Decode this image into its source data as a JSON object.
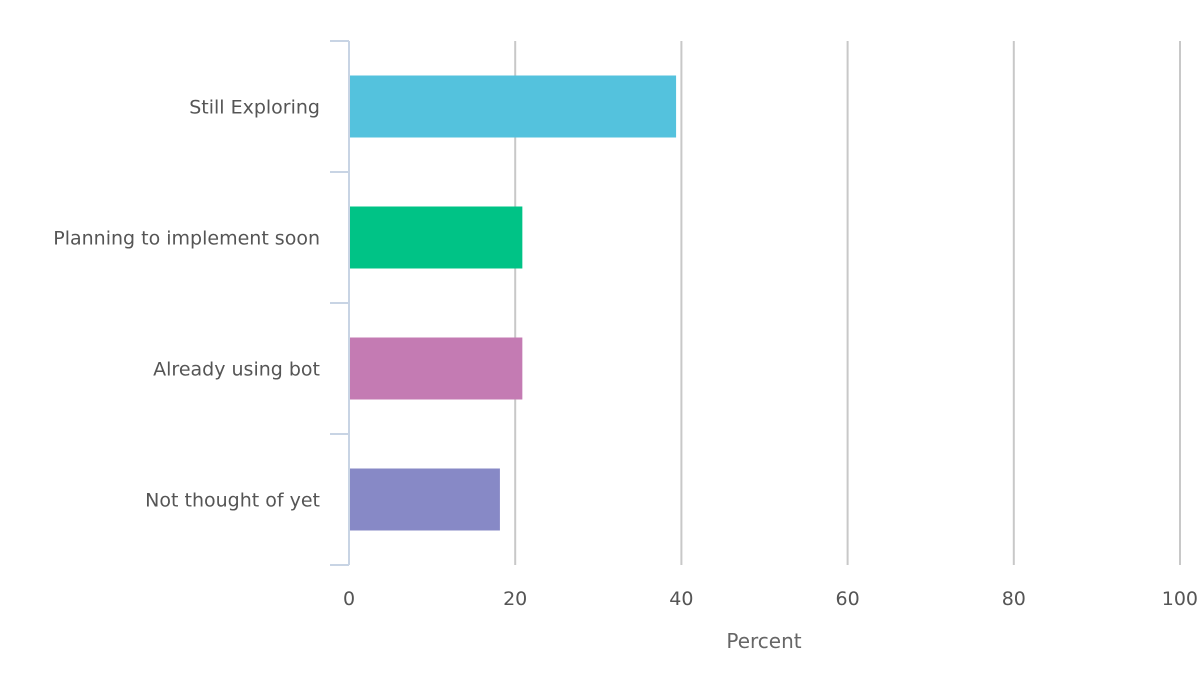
{
  "chart_data": {
    "type": "bar",
    "orientation": "horizontal",
    "categories": [
      "Still Exploring",
      "Planning to implement soon",
      "Already using bot",
      "Not thought of yet"
    ],
    "values": [
      39.3,
      20.8,
      20.8,
      18.1
    ],
    "colors": [
      "#54c2dd",
      "#00c386",
      "#c47bb3",
      "#8789c6"
    ],
    "xlabel": "Percent",
    "xlim": [
      0,
      100
    ],
    "xticks": [
      "0",
      "20",
      "40",
      "60",
      "80",
      "100"
    ],
    "grid": "vertical",
    "legend": "none"
  }
}
